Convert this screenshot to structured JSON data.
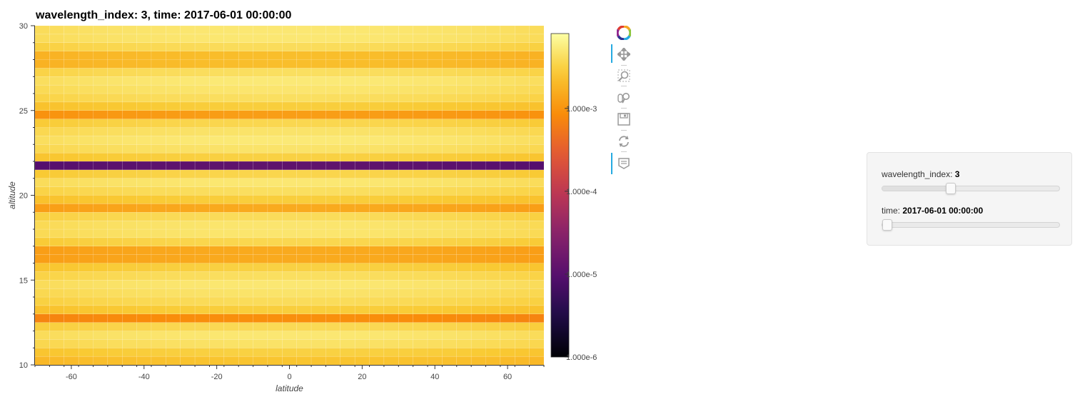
{
  "plot": {
    "title": "wavelength_index: 3, time: 2017-06-01 00:00:00"
  },
  "chart_data": {
    "type": "heatmap",
    "title": "wavelength_index: 3, time: 2017-06-01 00:00:00",
    "xlabel": "latitude",
    "ylabel": "altitude",
    "xlim": [
      -70,
      70
    ],
    "ylim": [
      10,
      30
    ],
    "x_ticks": [
      -60,
      -40,
      -20,
      0,
      20,
      40,
      60
    ],
    "y_ticks": [
      10,
      15,
      20,
      25,
      30
    ],
    "grid": false,
    "colormap": "inferno",
    "color_scale": "log",
    "colorbar": {
      "tick_labels": [
        "1.000e-6",
        "1.000e-5",
        "1.000e-4",
        "1.000e-3"
      ],
      "tick_values": [
        1e-06,
        1e-05,
        0.0001,
        0.001
      ],
      "range": [
        1e-06,
        0.008
      ]
    },
    "altitude_levels": [
      10,
      10.5,
      11,
      11.5,
      12,
      12.5,
      13,
      13.5,
      14,
      14.5,
      15,
      15.5,
      16,
      16.5,
      17,
      17.5,
      18,
      18.5,
      19,
      19.5,
      20,
      20.5,
      21,
      21.5,
      22,
      22.5,
      23,
      23.5,
      24,
      24.5,
      25,
      25.5,
      26,
      26.5,
      27,
      27.5,
      28,
      28.5,
      29,
      29.5
    ],
    "latitude_centers": [
      -68,
      -64,
      -60,
      -56,
      -52,
      -48,
      -44,
      -40,
      -36,
      -32,
      -28,
      -24,
      -20,
      -16,
      -12,
      -8,
      -4,
      0,
      4,
      8,
      12,
      16,
      20,
      24,
      28,
      32,
      36,
      40,
      44,
      48,
      52,
      56,
      60,
      64,
      68
    ],
    "values_by_altitude": [
      0.0025,
      0.0032,
      0.0045,
      0.005,
      0.0038,
      0.0009,
      0.003,
      0.004,
      0.0046,
      0.005,
      0.0042,
      0.0032,
      0.0015,
      0.0015,
      0.0036,
      0.0048,
      0.0048,
      0.004,
      0.0015,
      0.003,
      0.0042,
      0.005,
      0.0035,
      1.2e-05,
      0.0032,
      0.0046,
      0.0052,
      0.0046,
      0.0036,
      0.0012,
      0.003,
      0.0042,
      0.0048,
      0.0052,
      0.0042,
      0.0022,
      0.0022,
      0.004,
      0.005,
      0.005
    ],
    "latitude_profile": "values_by_altitude scaled by (1 - 0.22*(latitude/70)^2)"
  },
  "toolbar": {
    "logo": "bokeh-logo-icon",
    "tools": [
      "pan-icon",
      "box-zoom-icon",
      "wheel-zoom-icon",
      "save-icon",
      "reset-icon",
      "hover-icon"
    ]
  },
  "widgets": {
    "wavelength_slider": {
      "label": "wavelength_index:",
      "value": "3",
      "position_fraction": 0.375
    },
    "time_slider": {
      "label": "time:",
      "value": "2017-06-01 00:00:00",
      "position_fraction": 0.0
    }
  }
}
